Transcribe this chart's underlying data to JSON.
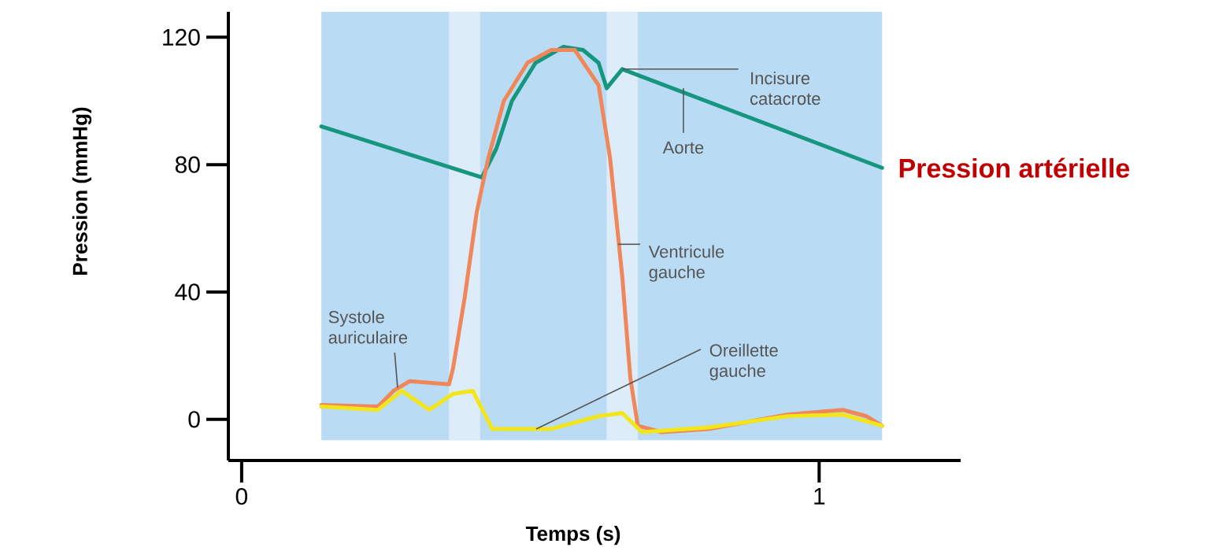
{
  "chart_data": {
    "type": "line",
    "xlabel": "Temps (s)",
    "ylabel": "Pression (mmHg)",
    "xlim": [
      -0.023,
      1.245
    ],
    "ylim": [
      -12.9,
      128
    ],
    "xticks": [
      0,
      1
    ],
    "yticks": [
      0,
      40,
      80,
      120
    ],
    "series": [
      {
        "name": "Aorte",
        "color": "#16957f",
        "x": [
          0.138,
          0.416,
          0.441,
          0.468,
          0.509,
          0.557,
          0.591,
          0.618,
          0.632,
          0.659,
          1.109
        ],
        "values": [
          92,
          76,
          85,
          100,
          112,
          117,
          116,
          112,
          104,
          110,
          79
        ]
      },
      {
        "name": "Ventricule gauche",
        "color": "#f0875a",
        "x": [
          0.138,
          0.236,
          0.263,
          0.291,
          0.359,
          0.366,
          0.386,
          0.407,
          0.427,
          0.454,
          0.495,
          0.536,
          0.577,
          0.618,
          0.638,
          0.659,
          0.673,
          0.686,
          0.727,
          0.809,
          0.945,
          1.041,
          1.082,
          1.109
        ],
        "values": [
          4.5,
          4,
          9,
          12,
          11,
          16,
          38,
          65,
          82,
          100,
          112,
          116,
          116,
          105,
          82,
          45,
          13,
          -2,
          -4,
          -3,
          1.5,
          3,
          1,
          -2
        ]
      },
      {
        "name": "Oreillette gauche",
        "color": "#f2e61a",
        "x": [
          0.138,
          0.236,
          0.277,
          0.325,
          0.366,
          0.4,
          0.434,
          0.536,
          0.618,
          0.659,
          0.693,
          0.809,
          0.945,
          1.041,
          1.109
        ],
        "values": [
          4,
          3,
          9,
          3,
          8,
          9,
          -3,
          -3,
          1,
          2,
          -4,
          -2.5,
          1,
          1.5,
          -2
        ]
      }
    ],
    "bands": [
      {
        "axis": "x",
        "from": 0.138,
        "to": 1.109,
        "color": "#b9dcf4"
      },
      {
        "axis": "x",
        "from": 0.359,
        "to": 0.413,
        "color": "#dcedf9"
      },
      {
        "axis": "x",
        "from": 0.632,
        "to": 0.686,
        "color": "#dcedf9"
      }
    ],
    "annotations": [
      {
        "text": "Incisure catacrote",
        "x": 0.659,
        "y": 110
      },
      {
        "text": "Systole auriculaire",
        "x": 0.27,
        "y": 10
      },
      "Pression artérielle"
    ]
  }
}
